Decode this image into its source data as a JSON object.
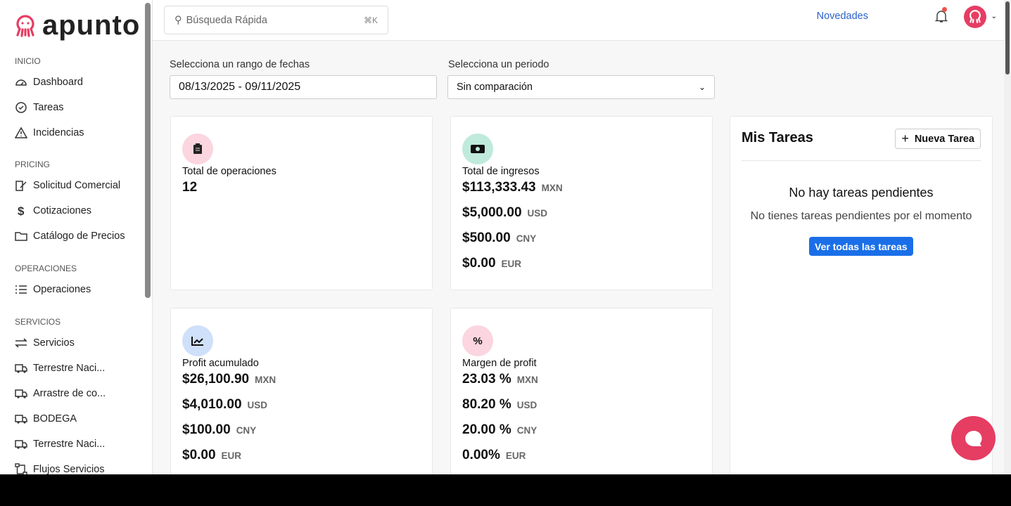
{
  "brand": {
    "name": "apunto",
    "color": "#e63d63"
  },
  "sidebar": {
    "sections": [
      {
        "title": "INICIO",
        "items": [
          {
            "label": "Dashboard",
            "icon": "gauge-icon"
          },
          {
            "label": "Tareas",
            "icon": "check-circle-icon"
          },
          {
            "label": "Incidencias",
            "icon": "warning-icon"
          }
        ]
      },
      {
        "title": "PRICING",
        "items": [
          {
            "label": "Solicitud Comercial",
            "icon": "edit-icon"
          },
          {
            "label": "Cotizaciones",
            "icon": "dollar-icon"
          },
          {
            "label": "Catálogo de Precios",
            "icon": "folder-icon"
          }
        ]
      },
      {
        "title": "OPERACIONES",
        "items": [
          {
            "label": "Operaciones",
            "icon": "list-icon"
          }
        ]
      },
      {
        "title": "SERVICIOS",
        "items": [
          {
            "label": "Servicios",
            "icon": "swap-icon"
          },
          {
            "label": "Terrestre Naci...",
            "icon": "truck-icon"
          },
          {
            "label": "Arrastre de co...",
            "icon": "truck-icon"
          },
          {
            "label": "BODEGA",
            "icon": "truck-icon"
          },
          {
            "label": "Terrestre Naci...",
            "icon": "truck-icon"
          },
          {
            "label": "Flujos Servicios",
            "icon": "flow-icon"
          }
        ]
      }
    ]
  },
  "header": {
    "search_placeholder": "Búsqueda Rápida",
    "shortcut": "⌘K",
    "news": "Novedades"
  },
  "filters": {
    "range_label": "Selecciona un rango de fechas",
    "range_value": "08/13/2025 - 09/11/2025",
    "period_label": "Selecciona un periodo",
    "period_value": "Sin comparación"
  },
  "cards": {
    "ops": {
      "title": "Total de operaciones",
      "value": "12"
    },
    "income": {
      "title": "Total de ingresos",
      "rows": [
        {
          "v": "$113,333.43",
          "c": "MXN"
        },
        {
          "v": "$5,000.00",
          "c": "USD"
        },
        {
          "v": "$500.00",
          "c": "CNY"
        },
        {
          "v": "$0.00",
          "c": "EUR"
        }
      ]
    },
    "profit": {
      "title": "Profit acumulado",
      "rows": [
        {
          "v": "$26,100.90",
          "c": "MXN"
        },
        {
          "v": "$4,010.00",
          "c": "USD"
        },
        {
          "v": "$100.00",
          "c": "CNY"
        },
        {
          "v": "$0.00",
          "c": "EUR"
        }
      ]
    },
    "margin": {
      "title": "Margen de profit",
      "rows": [
        {
          "v": "23.03 %",
          "c": "MXN"
        },
        {
          "v": "80.20 %",
          "c": "USD"
        },
        {
          "v": "20.00 %",
          "c": "CNY"
        },
        {
          "v": "0.00%",
          "c": "EUR"
        }
      ]
    }
  },
  "tasks": {
    "title": "Mis Tareas",
    "new_button": "Nueva Tarea",
    "empty_title": "No hay tareas pendientes",
    "empty_text": "No tienes tareas pendientes por el momento",
    "view_all": "Ver todas las tareas"
  }
}
